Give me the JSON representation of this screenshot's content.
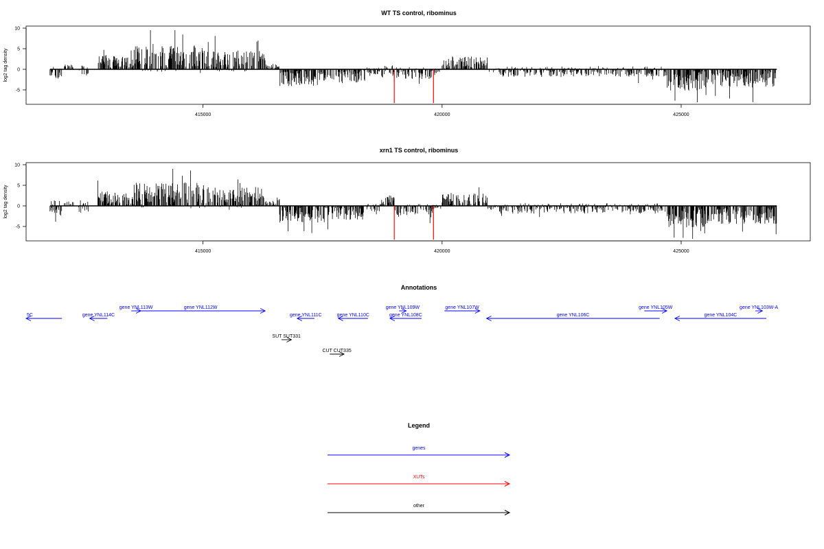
{
  "colors": {
    "gene": "#0000ff",
    "xut": "#ff0000",
    "other": "#000000"
  },
  "chart_data": [
    {
      "type": "bar",
      "title": "WT TS control, ribominus",
      "ylabel": "log2 tag density",
      "xlim": [
        411300,
        427700
      ],
      "ylim": [
        -8.5,
        10.5
      ],
      "yticks": [
        -5,
        0,
        5,
        10
      ],
      "xticks": [
        415000,
        420000,
        425000
      ],
      "xtick_labels": [
        "415000",
        "420000",
        "425000"
      ],
      "grid": false,
      "highlights": [
        {
          "x": 419000,
          "y": -8.2
        },
        {
          "x": 419820,
          "y": -8.2
        }
      ]
    },
    {
      "type": "bar",
      "title": "xrn1 TS control, ribominus",
      "ylabel": "log2 tag density",
      "xlim": [
        411300,
        427700
      ],
      "ylim": [
        -8.5,
        10.5
      ],
      "yticks": [
        -5,
        0,
        5,
        10
      ],
      "xticks": [
        415000,
        420000,
        425000
      ],
      "xtick_labels": [
        "415000",
        "420000",
        "425000"
      ],
      "grid": false,
      "highlights": [
        {
          "x": 419000,
          "y": -8.2
        },
        {
          "x": 419820,
          "y": -8.2
        }
      ]
    }
  ],
  "annotations": {
    "title": "Annotations",
    "features": [
      {
        "label": "5C",
        "type": "gene",
        "start": 411300,
        "end": 412050,
        "strand": "-",
        "row": 1
      },
      {
        "label": "gene YNL113W",
        "type": "gene",
        "start": 413500,
        "end": 413700,
        "strand": "+",
        "row": 0
      },
      {
        "label": "gene YNL114C",
        "type": "gene",
        "start": 412630,
        "end": 413000,
        "strand": "-",
        "row": 1
      },
      {
        "label": "gene YNL112W",
        "type": "gene",
        "start": 413600,
        "end": 416300,
        "strand": "+",
        "row": 0
      },
      {
        "label": "gene YNL111C",
        "type": "gene",
        "start": 416970,
        "end": 417330,
        "strand": "-",
        "row": 1
      },
      {
        "label": "gene YNL110C",
        "type": "gene",
        "start": 417830,
        "end": 418450,
        "strand": "-",
        "row": 1
      },
      {
        "label": "gene YNL109W",
        "type": "gene",
        "start": 419100,
        "end": 419250,
        "strand": "+",
        "row": 0
      },
      {
        "label": "gene YNL108C",
        "type": "gene",
        "start": 418910,
        "end": 419570,
        "strand": "-",
        "row": 1
      },
      {
        "label": "gene YNL107W",
        "type": "gene",
        "start": 420050,
        "end": 420790,
        "strand": "+",
        "row": 0
      },
      {
        "label": "gene YNL106C",
        "type": "gene",
        "start": 420930,
        "end": 424550,
        "strand": "-",
        "row": 1
      },
      {
        "label": "gene YNL105W",
        "type": "gene",
        "start": 424230,
        "end": 424700,
        "strand": "+",
        "row": 0
      },
      {
        "label": "gene YNL104C",
        "type": "gene",
        "start": 424870,
        "end": 426780,
        "strand": "-",
        "row": 1
      },
      {
        "label": "gene YNL103W-A",
        "type": "gene",
        "start": 426550,
        "end": 426700,
        "strand": "+",
        "row": 0
      },
      {
        "label": "SUT SUT331",
        "type": "other",
        "start": 416640,
        "end": 416850,
        "strand": "+",
        "row": 3
      },
      {
        "label": "CUT CUT335",
        "type": "other",
        "start": 417650,
        "end": 417950,
        "strand": "+",
        "row": 5
      }
    ]
  },
  "legend": {
    "title": "Legend",
    "items": [
      {
        "label": "genes",
        "color": "#0000ff"
      },
      {
        "label": "XUTs",
        "color": "#ff0000"
      },
      {
        "label": "other",
        "color": "#000000"
      }
    ]
  }
}
